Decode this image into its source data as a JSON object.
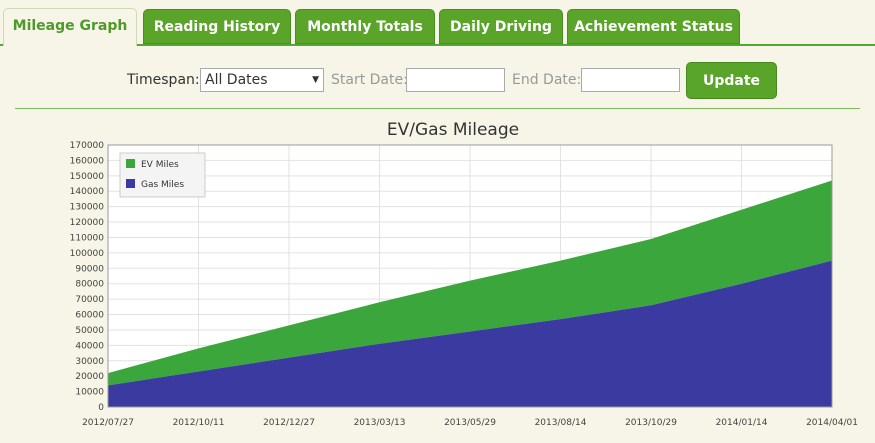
{
  "tabs": [
    {
      "label": "Mileage Graph",
      "active": true
    },
    {
      "label": "Reading History",
      "active": false
    },
    {
      "label": "Monthly Totals",
      "active": false
    },
    {
      "label": "Daily Driving",
      "active": false
    },
    {
      "label": "Achievement Status",
      "active": false
    }
  ],
  "controls": {
    "timespan_label": "Timespan:",
    "timespan_value": "All Dates",
    "start_label": "Start Date:",
    "start_value": "",
    "end_label": "End Date:",
    "end_value": "",
    "update_label": "Update"
  },
  "colors": {
    "ev": "#3ba63b",
    "gas": "#3a3aa0",
    "accent": "#5aa42a"
  },
  "chart_data": {
    "type": "area",
    "stacked": true,
    "title": "EV/Gas Mileage",
    "xlabel": "",
    "ylabel": "",
    "ylim": [
      0,
      170000
    ],
    "yticks": [
      0,
      10000,
      20000,
      30000,
      40000,
      50000,
      60000,
      70000,
      80000,
      90000,
      100000,
      110000,
      120000,
      130000,
      140000,
      150000,
      160000,
      170000
    ],
    "xticks": [
      "2012/07/27",
      "2012/10/11",
      "2012/12/27",
      "2013/03/13",
      "2013/05/29",
      "2013/08/14",
      "2013/10/29",
      "2014/01/14",
      "2014/04/01"
    ],
    "legend": {
      "position": "top-left",
      "entries": [
        "EV Miles",
        "Gas Miles"
      ]
    },
    "grid": true,
    "x": [
      "2012/07/27",
      "2012/10/11",
      "2012/12/27",
      "2013/03/13",
      "2013/05/29",
      "2013/08/14",
      "2013/10/29",
      "2014/01/14",
      "2014/04/01"
    ],
    "series": [
      {
        "name": "Gas Miles",
        "values": [
          14000,
          23000,
          32000,
          41000,
          49000,
          57000,
          66000,
          80000,
          95000
        ]
      },
      {
        "name": "EV Miles",
        "values": [
          8000,
          15000,
          21000,
          27000,
          33000,
          38000,
          43000,
          48000,
          52000
        ]
      }
    ]
  }
}
